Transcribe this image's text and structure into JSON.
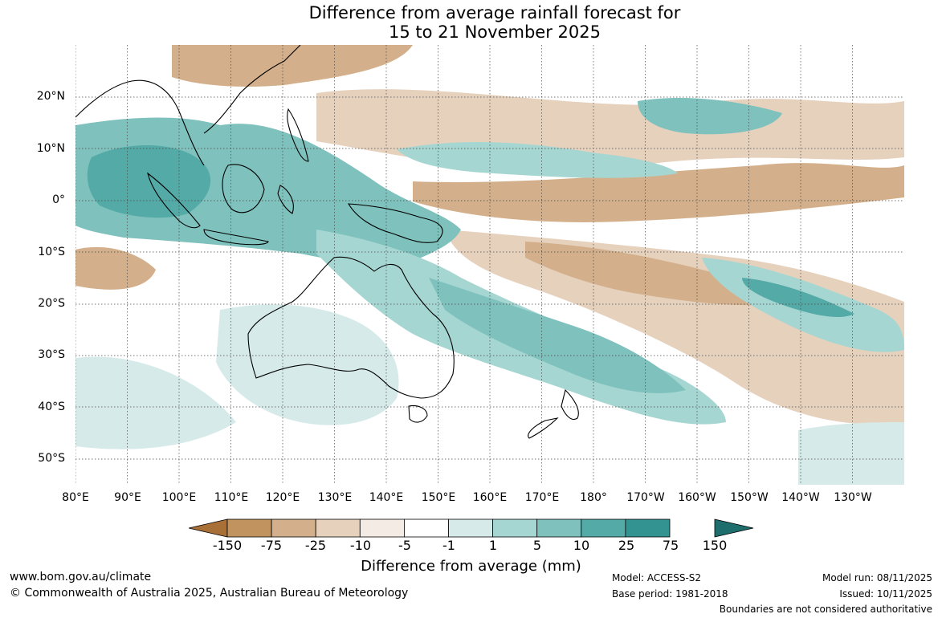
{
  "title": {
    "line1": "Difference from average rainfall forecast for",
    "line2": "15 to 21 November 2025"
  },
  "axes": {
    "latitudes": [
      "20°N",
      "10°N",
      "0°",
      "10°S",
      "20°S",
      "30°S",
      "40°S",
      "50°S"
    ],
    "longitudes": [
      "80°E",
      "90°E",
      "100°E",
      "110°E",
      "120°E",
      "130°E",
      "140°E",
      "150°E",
      "160°E",
      "170°E",
      "180°",
      "170°W",
      "160°W",
      "150°W",
      "140°W",
      "130°W"
    ]
  },
  "legend": {
    "ticks": [
      "-150",
      "-75",
      "-25",
      "-10",
      "-5",
      "-1",
      "1",
      "5",
      "10",
      "25",
      "75",
      "150"
    ],
    "colors": [
      "#a86f36",
      "#c0935f",
      "#d3b08b",
      "#e6d1bd",
      "#f4ebe4",
      "#ffffff",
      "#d6ebe9",
      "#a6d6d2",
      "#7ec1bd",
      "#54aaa7",
      "#339390",
      "#1d6e6c"
    ],
    "label": "Difference from average (mm)"
  },
  "footer": {
    "website": "www.bom.gov.au/climate",
    "copyright": "© Commonwealth of Australia 2025, Australian Bureau of Meteorology",
    "model": "Model: ACCESS-S2",
    "base_period": "Base period: 1981-2018",
    "model_run": "Model run: 08/11/2025",
    "issued": "Issued: 10/11/2025",
    "disclaimer": "Boundaries are not considered authoritative"
  }
}
